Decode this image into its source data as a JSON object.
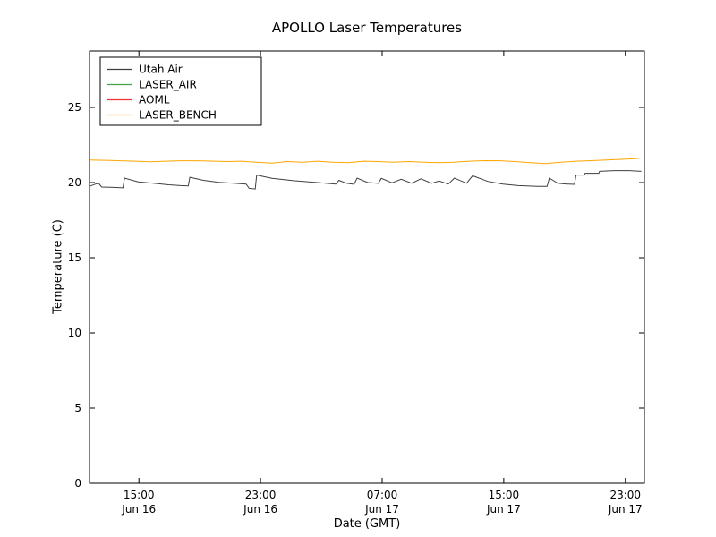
{
  "chart_data": {
    "type": "line",
    "title": "APOLLO Laser Temperatures",
    "xlabel": "Date (GMT)",
    "ylabel": "Temperature (C)",
    "xlim": [
      0,
      36.5
    ],
    "ylim": [
      0,
      28.75
    ],
    "grid": false,
    "legend_position": "upper left",
    "yticks": [
      0,
      5,
      10,
      15,
      20,
      25
    ],
    "xticks": [
      {
        "pos": 3.25,
        "time": "15:00",
        "date": "Jun 16"
      },
      {
        "pos": 11.25,
        "time": "23:00",
        "date": "Jun 16"
      },
      {
        "pos": 19.25,
        "time": "07:00",
        "date": "Jun 17"
      },
      {
        "pos": 27.25,
        "time": "15:00",
        "date": "Jun 17"
      },
      {
        "pos": 35.25,
        "time": "23:00",
        "date": "Jun 17"
      }
    ],
    "series": [
      {
        "name": "Utah Air",
        "color": "#3f3f3f",
        "points": [
          [
            0,
            19.75
          ],
          [
            0.4,
            19.9
          ],
          [
            0.6,
            19.95
          ],
          [
            0.8,
            19.7
          ],
          [
            1.6,
            19.68
          ],
          [
            2.2,
            19.65
          ],
          [
            2.3,
            20.3
          ],
          [
            3.2,
            20.05
          ],
          [
            4.2,
            19.95
          ],
          [
            5.2,
            19.85
          ],
          [
            6.0,
            19.8
          ],
          [
            6.5,
            19.78
          ],
          [
            6.6,
            20.35
          ],
          [
            7.5,
            20.15
          ],
          [
            8.5,
            20.02
          ],
          [
            9.5,
            19.95
          ],
          [
            10.3,
            19.9
          ],
          [
            10.5,
            19.62
          ],
          [
            10.9,
            19.58
          ],
          [
            11.0,
            20.5
          ],
          [
            12.0,
            20.28
          ],
          [
            13.5,
            20.12
          ],
          [
            15.0,
            20.0
          ],
          [
            16.2,
            19.9
          ],
          [
            16.4,
            20.15
          ],
          [
            16.9,
            19.95
          ],
          [
            17.4,
            19.88
          ],
          [
            17.6,
            20.3
          ],
          [
            18.3,
            20.0
          ],
          [
            19.0,
            19.95
          ],
          [
            19.2,
            20.28
          ],
          [
            19.9,
            19.98
          ],
          [
            20.5,
            20.22
          ],
          [
            21.2,
            19.95
          ],
          [
            21.8,
            20.25
          ],
          [
            22.5,
            19.95
          ],
          [
            23.0,
            20.1
          ],
          [
            23.6,
            19.9
          ],
          [
            24.0,
            20.3
          ],
          [
            24.8,
            19.95
          ],
          [
            25.2,
            20.45
          ],
          [
            26.2,
            20.08
          ],
          [
            27.2,
            19.9
          ],
          [
            28.2,
            19.8
          ],
          [
            29.5,
            19.75
          ],
          [
            30.1,
            19.75
          ],
          [
            30.25,
            20.3
          ],
          [
            30.8,
            19.95
          ],
          [
            31.4,
            19.9
          ],
          [
            31.9,
            19.88
          ],
          [
            32.0,
            20.5
          ],
          [
            32.55,
            20.5
          ],
          [
            32.6,
            20.62
          ],
          [
            33.5,
            20.62
          ],
          [
            33.55,
            20.75
          ],
          [
            34.5,
            20.8
          ],
          [
            35.5,
            20.8
          ],
          [
            36.3,
            20.75
          ]
        ]
      },
      {
        "name": "LASER_AIR",
        "color": "#44a044",
        "points": []
      },
      {
        "name": "AOML",
        "color": "#ee3333",
        "points": []
      },
      {
        "name": "LASER_BENCH",
        "color": "#ffa500",
        "points": [
          [
            0,
            21.5
          ],
          [
            1,
            21.48
          ],
          [
            2,
            21.45
          ],
          [
            3,
            21.42
          ],
          [
            4,
            21.38
          ],
          [
            5,
            21.42
          ],
          [
            6,
            21.45
          ],
          [
            7,
            21.45
          ],
          [
            8,
            21.43
          ],
          [
            9,
            21.4
          ],
          [
            10,
            21.42
          ],
          [
            10.5,
            21.38
          ],
          [
            11,
            21.35
          ],
          [
            12,
            21.3
          ],
          [
            13,
            21.4
          ],
          [
            14,
            21.36
          ],
          [
            15,
            21.42
          ],
          [
            16,
            21.36
          ],
          [
            17,
            21.32
          ],
          [
            18,
            21.42
          ],
          [
            19,
            21.4
          ],
          [
            20,
            21.36
          ],
          [
            21,
            21.4
          ],
          [
            22,
            21.35
          ],
          [
            23,
            21.32
          ],
          [
            24,
            21.36
          ],
          [
            25,
            21.42
          ],
          [
            26,
            21.46
          ],
          [
            27,
            21.45
          ],
          [
            28,
            21.4
          ],
          [
            29,
            21.32
          ],
          [
            30,
            21.26
          ],
          [
            31,
            21.35
          ],
          [
            32,
            21.42
          ],
          [
            33,
            21.46
          ],
          [
            34,
            21.5
          ],
          [
            35,
            21.55
          ],
          [
            36,
            21.6
          ],
          [
            36.3,
            21.65
          ]
        ]
      }
    ]
  }
}
